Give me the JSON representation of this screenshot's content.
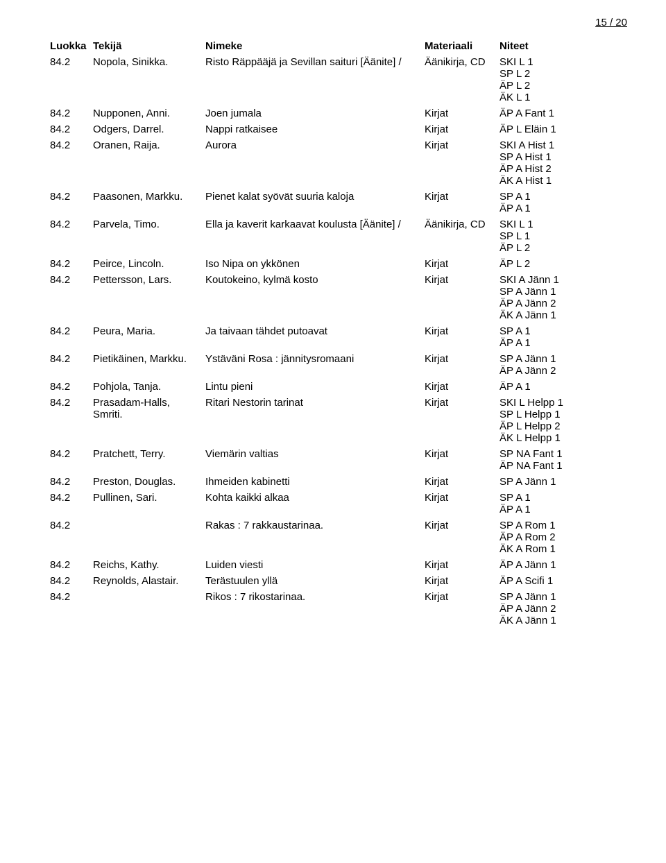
{
  "page_label": "15 / 20",
  "columns": {
    "class": "Luokka",
    "author": "Tekijä",
    "title": "Nimeke",
    "material": "Materiaali",
    "shelves": "Niteet"
  },
  "rows": [
    {
      "class": "84.2",
      "author": "Nopola, Sinikka.",
      "title": "Risto Räppääjä ja Sevillan saituri [Äänite] /",
      "material": "Äänikirja, CD",
      "shelves": [
        "SKI L 1",
        "SP L 2",
        "ÄP L 2",
        "ÄK L 1"
      ]
    },
    {
      "class": "84.2",
      "author": "Nupponen, Anni.",
      "title": "Joen jumala",
      "material": "Kirjat",
      "shelves": [
        "ÄP A Fant 1"
      ]
    },
    {
      "class": "84.2",
      "author": "Odgers, Darrel.",
      "title": "Nappi ratkaisee",
      "material": "Kirjat",
      "shelves": [
        "ÄP L Eläin 1"
      ]
    },
    {
      "class": "84.2",
      "author": "Oranen, Raija.",
      "title": "Aurora",
      "material": "Kirjat",
      "shelves": [
        "SKI A Hist 1",
        "SP A Hist 1",
        "ÄP A Hist 2",
        "ÄK A Hist 1"
      ]
    },
    {
      "class": "84.2",
      "author": "Paasonen, Markku.",
      "title": "Pienet kalat syövät suuria kaloja",
      "material": "Kirjat",
      "shelves": [
        "SP A 1",
        "ÄP A 1"
      ]
    },
    {
      "class": "84.2",
      "author": "Parvela, Timo.",
      "title": "Ella ja kaverit karkaavat koulusta [Äänite] /",
      "material": "Äänikirja, CD",
      "shelves": [
        "SKI L 1",
        "SP L 1",
        "ÄP L 2"
      ]
    },
    {
      "class": "84.2",
      "author": "Peirce, Lincoln.",
      "title": "Iso Nipa on ykkönen",
      "material": "Kirjat",
      "shelves": [
        "ÄP L 2"
      ]
    },
    {
      "class": "84.2",
      "author": "Pettersson, Lars.",
      "title": "Koutokeino, kylmä kosto",
      "material": "Kirjat",
      "shelves": [
        "SKI A Jänn 1",
        "SP A Jänn 1",
        "ÄP A Jänn 2",
        "ÄK A Jänn 1"
      ]
    },
    {
      "class": "84.2",
      "author": "Peura, Maria.",
      "title": "Ja taivaan tähdet putoavat",
      "material": "Kirjat",
      "shelves": [
        "SP A 1",
        "ÄP A 1"
      ]
    },
    {
      "class": "84.2",
      "author": "Pietikäinen, Markku.",
      "title": "Ystäväni Rosa : jännitysromaani",
      "material": "Kirjat",
      "shelves": [
        "SP A Jänn 1",
        "ÄP A Jänn 2"
      ]
    },
    {
      "class": "84.2",
      "author": "Pohjola, Tanja.",
      "title": "Lintu pieni",
      "material": "Kirjat",
      "shelves": [
        "ÄP A 1"
      ]
    },
    {
      "class": "84.2",
      "author": "Prasadam-Halls, Smriti.",
      "title": "Ritari Nestorin tarinat",
      "material": "Kirjat",
      "shelves": [
        "SKI L Helpp 1",
        "SP L Helpp 1",
        "ÄP L Helpp 2",
        "ÄK L Helpp 1"
      ]
    },
    {
      "class": "84.2",
      "author": "Pratchett, Terry.",
      "title": "Viemärin valtias",
      "material": "Kirjat",
      "shelves": [
        "SP NA Fant 1",
        "ÄP NA Fant 1"
      ]
    },
    {
      "class": "84.2",
      "author": "Preston, Douglas.",
      "title": "Ihmeiden kabinetti",
      "material": "Kirjat",
      "shelves": [
        "SP A Jänn 1"
      ]
    },
    {
      "class": "84.2",
      "author": "Pullinen, Sari.",
      "title": "Kohta kaikki alkaa",
      "material": "Kirjat",
      "shelves": [
        "SP A 1",
        "ÄP A 1"
      ]
    },
    {
      "class": "84.2",
      "author": "",
      "title": "Rakas : 7 rakkaustarinaa.",
      "material": "Kirjat",
      "shelves": [
        "SP A Rom 1",
        "ÄP A Rom 2",
        "ÄK A Rom 1"
      ]
    },
    {
      "class": "84.2",
      "author": "Reichs, Kathy.",
      "title": "Luiden viesti",
      "material": "Kirjat",
      "shelves": [
        "ÄP A Jänn 1"
      ]
    },
    {
      "class": "84.2",
      "author": "Reynolds, Alastair.",
      "title": "Terästuulen yllä",
      "material": "Kirjat",
      "shelves": [
        "ÄP A Scifi 1"
      ]
    },
    {
      "class": "84.2",
      "author": "",
      "title": "Rikos : 7 rikostarinaa.",
      "material": "Kirjat",
      "shelves": [
        "SP A Jänn 1",
        "ÄP A Jänn 2",
        "ÄK A Jänn 1"
      ]
    }
  ]
}
